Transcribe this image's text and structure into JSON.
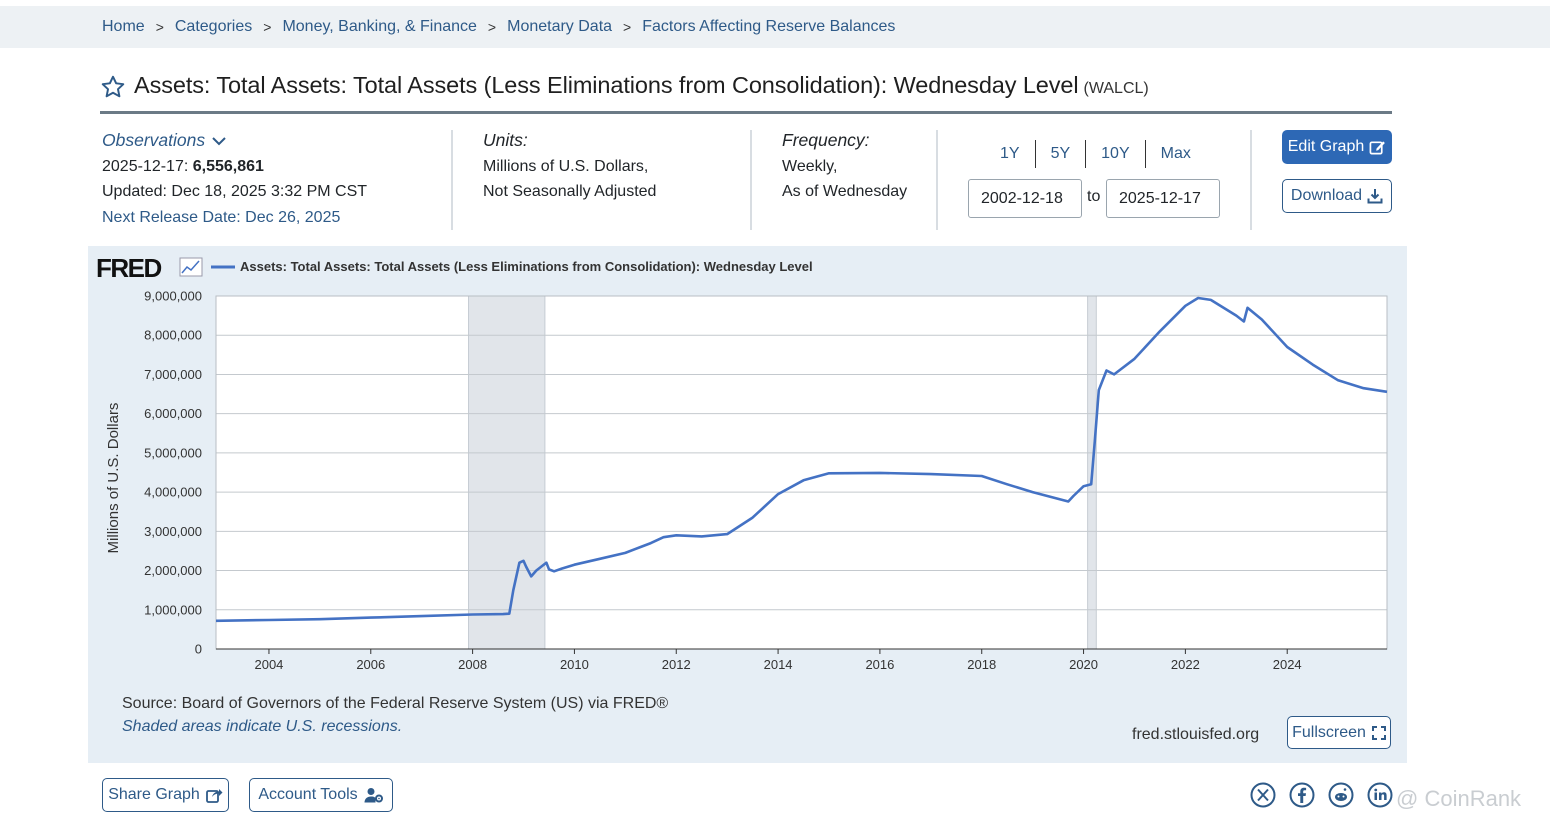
{
  "breadcrumb": [
    "Home",
    "Categories",
    "Money, Banking, & Finance",
    "Monetary Data",
    "Factors Affecting Reserve Balances"
  ],
  "breadcrumb_separator": ">",
  "title": "Assets: Total Assets: Total Assets (Less Eliminations from Consolidation): Wednesday Level",
  "series_id": "(WALCL)",
  "observations": {
    "label": "Observations",
    "date": "2025-12-17:",
    "value": "6,556,861",
    "updated": "Updated: Dec 18, 2025 3:32 PM CST",
    "next_release": "Next Release Date: Dec 26, 2025"
  },
  "units": {
    "label": "Units:",
    "line1": "Millions of U.S. Dollars,",
    "line2": "Not Seasonally Adjusted"
  },
  "frequency": {
    "label": "Frequency:",
    "line1": "Weekly,",
    "line2": "As of Wednesday"
  },
  "range": {
    "buttons": [
      "1Y",
      "5Y",
      "10Y",
      "Max"
    ],
    "start": "2002-12-18",
    "to": "to",
    "end": "2025-12-17"
  },
  "actions": {
    "edit": "Edit Graph",
    "download": "Download",
    "fullscreen": "Fullscreen",
    "share": "Share Graph",
    "account": "Account Tools"
  },
  "footer": {
    "source": "Source: Board of Governors of the Federal Reserve System (US) via FRED®",
    "recession_note": "Shaded areas indicate U.S. recessions.",
    "site": "fred.stlouisfed.org"
  },
  "watermark": "@ CoinRank",
  "colors": {
    "link": "#2e5a88",
    "accent": "#2d68b5",
    "series": "#4472c4",
    "panel": "#e6eef5",
    "recession": "#e1e5ea"
  },
  "chart_data": {
    "type": "line",
    "logo": "FRED",
    "legend": "Assets: Total Assets: Total Assets (Less Eliminations from Consolidation): Wednesday Level",
    "ylabel": "Millions of U.S. Dollars",
    "xlim": [
      2002.96,
      2025.96
    ],
    "ylim": [
      0,
      9000000
    ],
    "yticks": [
      0,
      1000000,
      2000000,
      3000000,
      4000000,
      5000000,
      6000000,
      7000000,
      8000000,
      9000000
    ],
    "ytick_labels": [
      "0",
      "1,000,000",
      "2,000,000",
      "3,000,000",
      "4,000,000",
      "5,000,000",
      "6,000,000",
      "7,000,000",
      "8,000,000",
      "9,000,000"
    ],
    "xticks": [
      2004,
      2006,
      2008,
      2010,
      2012,
      2014,
      2016,
      2018,
      2020,
      2022,
      2024
    ],
    "xtick_labels": [
      "2004",
      "2006",
      "2008",
      "2010",
      "2012",
      "2014",
      "2016",
      "2018",
      "2020",
      "2022",
      "2024"
    ],
    "recessions": [
      [
        2007.92,
        2009.42
      ],
      [
        2020.08,
        2020.25
      ]
    ],
    "series": [
      {
        "name": "WALCL",
        "points": [
          [
            2002.96,
            720000
          ],
          [
            2004.0,
            740000
          ],
          [
            2005.0,
            760000
          ],
          [
            2006.0,
            800000
          ],
          [
            2007.0,
            840000
          ],
          [
            2008.0,
            880000
          ],
          [
            2008.6,
            890000
          ],
          [
            2008.72,
            900000
          ],
          [
            2008.8,
            1500000
          ],
          [
            2008.92,
            2200000
          ],
          [
            2009.0,
            2250000
          ],
          [
            2009.05,
            2100000
          ],
          [
            2009.15,
            1850000
          ],
          [
            2009.25,
            2000000
          ],
          [
            2009.35,
            2100000
          ],
          [
            2009.45,
            2200000
          ],
          [
            2009.5,
            2030000
          ],
          [
            2009.6,
            1980000
          ],
          [
            2009.75,
            2050000
          ],
          [
            2010.0,
            2150000
          ],
          [
            2010.5,
            2300000
          ],
          [
            2011.0,
            2450000
          ],
          [
            2011.3,
            2600000
          ],
          [
            2011.5,
            2700000
          ],
          [
            2011.75,
            2850000
          ],
          [
            2012.0,
            2900000
          ],
          [
            2012.5,
            2870000
          ],
          [
            2013.0,
            2930000
          ],
          [
            2013.5,
            3350000
          ],
          [
            2014.0,
            3950000
          ],
          [
            2014.5,
            4300000
          ],
          [
            2015.0,
            4480000
          ],
          [
            2016.0,
            4490000
          ],
          [
            2017.0,
            4460000
          ],
          [
            2018.0,
            4410000
          ],
          [
            2018.5,
            4200000
          ],
          [
            2019.0,
            4000000
          ],
          [
            2019.7,
            3760000
          ],
          [
            2019.8,
            3900000
          ],
          [
            2020.0,
            4150000
          ],
          [
            2020.15,
            4200000
          ],
          [
            2020.22,
            5300000
          ],
          [
            2020.3,
            6600000
          ],
          [
            2020.45,
            7100000
          ],
          [
            2020.6,
            7000000
          ],
          [
            2021.0,
            7400000
          ],
          [
            2021.5,
            8100000
          ],
          [
            2022.0,
            8750000
          ],
          [
            2022.25,
            8950000
          ],
          [
            2022.5,
            8900000
          ],
          [
            2023.0,
            8500000
          ],
          [
            2023.15,
            8350000
          ],
          [
            2023.22,
            8700000
          ],
          [
            2023.5,
            8400000
          ],
          [
            2024.0,
            7700000
          ],
          [
            2024.5,
            7250000
          ],
          [
            2025.0,
            6850000
          ],
          [
            2025.5,
            6650000
          ],
          [
            2025.96,
            6556861
          ]
        ]
      }
    ]
  }
}
